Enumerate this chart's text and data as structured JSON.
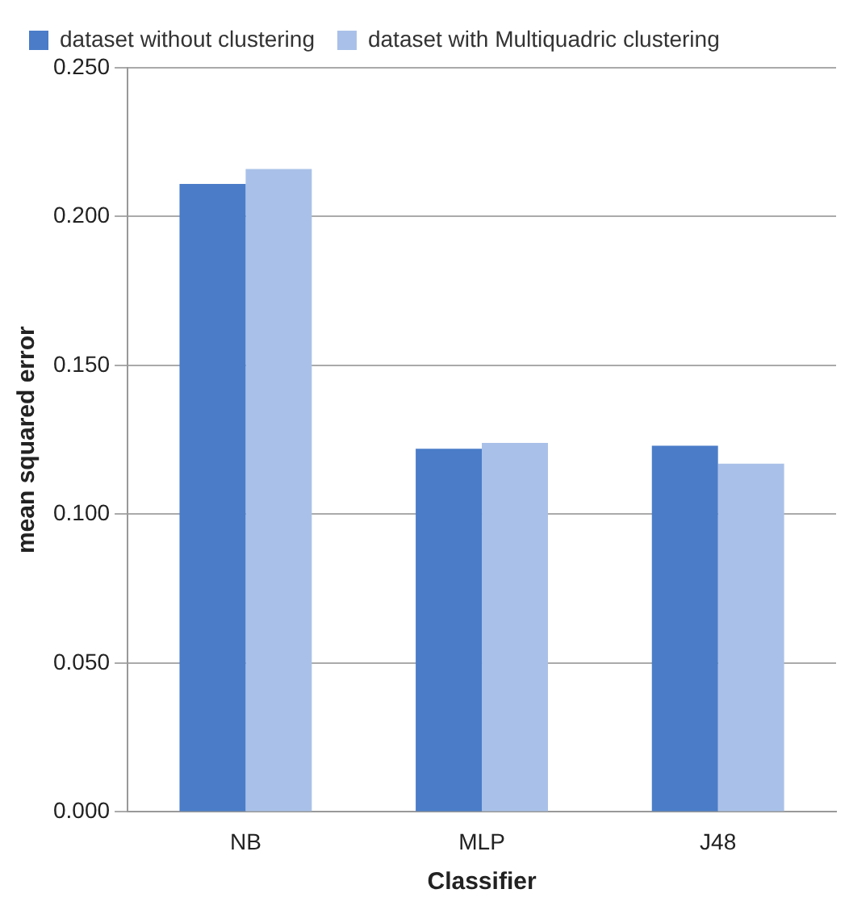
{
  "chart_data": {
    "type": "bar",
    "xlabel": "Classifier",
    "ylabel": "mean squared error",
    "categories": [
      "NB",
      "MLP",
      "J48"
    ],
    "series": [
      {
        "name": "dataset without clustering",
        "color": "#4a7cc8",
        "values": [
          0.211,
          0.122,
          0.123
        ]
      },
      {
        "name": "dataset with Multiquadric clustering",
        "color": "#a9c1e8",
        "values": [
          0.216,
          0.124,
          0.117
        ]
      }
    ],
    "ylim": [
      0,
      0.25
    ],
    "yticks": [
      {
        "value": 0,
        "label": "0.000"
      },
      {
        "value": 0.05,
        "label": "0.050"
      },
      {
        "value": 0.1,
        "label": "0.100"
      },
      {
        "value": 0.15,
        "label": "0.150"
      },
      {
        "value": 0.2,
        "label": "0.200"
      },
      {
        "value": 0.25,
        "label": "0.250"
      }
    ],
    "grid": "y",
    "legend": "top left"
  }
}
